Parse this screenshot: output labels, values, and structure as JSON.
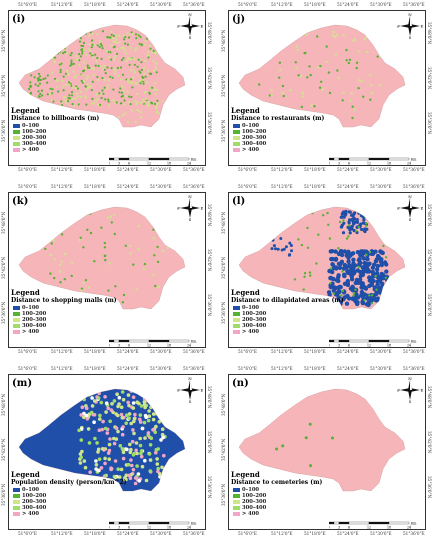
{
  "x_ticks": [
    "51°6'0\"E",
    "51°12'0\"E",
    "51°18'0\"E",
    "51°24'0\"E",
    "51°30'0\"E",
    "51°36'0\"E"
  ],
  "y_ticks": [
    "35°48'0\"N",
    "35°42'0\"N",
    "35°36'0\"N"
  ],
  "compass": {
    "n": "N",
    "s": "S",
    "e": "E",
    "w": "W"
  },
  "scale_numbers": [
    "0",
    "3",
    "6",
    "12",
    "18",
    "24"
  ],
  "scale_unit": "Km",
  "legend_title": "Legend",
  "colors": {
    "base": "#f6b6b9",
    "blue": "#1f4fa8",
    "c100_200": "#55b233",
    "c200_300": "#cfe58a",
    "c300_400": "#9fdc6a",
    "c400": "#f2a6c6",
    "light_green": "#b8d88a"
  },
  "classes": [
    "0–100",
    "100–200",
    "200–300",
    "300–400",
    "> 400"
  ],
  "panels": [
    {
      "letter": "(i)",
      "subtitle": "Distance to billboards (m)",
      "fill": "dense"
    },
    {
      "letter": "(j)",
      "subtitle": "Distance to restaurants (m)",
      "fill": "sparse"
    },
    {
      "letter": "(k)",
      "subtitle": "Distance to shopping malls (m)",
      "fill": "sparse"
    },
    {
      "letter": "(l)",
      "subtitle": "Distance to dilapidated areas (m)",
      "fill": "blue-east"
    },
    {
      "letter": "(m)",
      "subtitle": "Population density (person/km^2)",
      "fill": "density"
    },
    {
      "letter": "(n)",
      "subtitle": "Distance to cemeteries (m)",
      "fill": "few"
    }
  ]
}
